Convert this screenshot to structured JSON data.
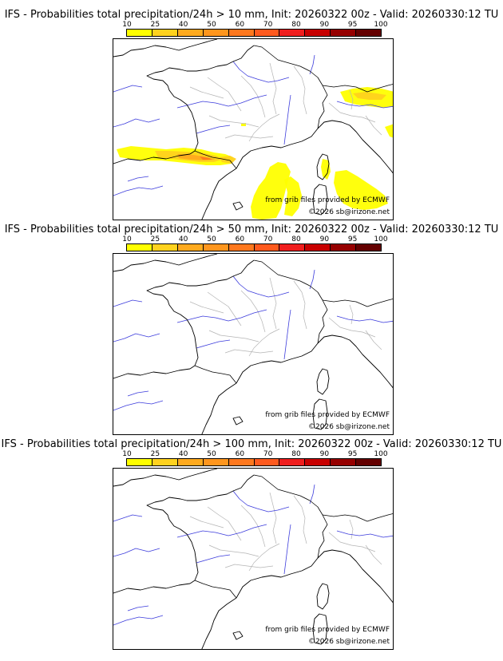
{
  "color_scale": {
    "labels": [
      "10",
      "25",
      "40",
      "50",
      "60",
      "70",
      "80",
      "90",
      "95",
      "100"
    ],
    "colors": [
      "#ffff00",
      "#ffd21e",
      "#ffaa1e",
      "#ff961e",
      "#ff781e",
      "#ff5a1e",
      "#f01e1e",
      "#c80000",
      "#960000",
      "#640000"
    ]
  },
  "panels": [
    {
      "title": "IFS - Probabilities total precipitation/24h > 10 mm, Init: 20260322 00z - Valid: 20260330:12 TU",
      "credit_source": "from grib files provided by ECMWF",
      "credit_copyright": "©2026 sb@irizone.net",
      "has_precip": true
    },
    {
      "title": "IFS - Probabilities total precipitation/24h > 50 mm, Init: 20260322 00z - Valid: 20260330:12 TU",
      "credit_source": "from grib files provided by ECMWF",
      "credit_copyright": "©2026 sb@irizone.net",
      "has_precip": false
    },
    {
      "title": "IFS - Probabilities total precipitation/24h > 100 mm, Init: 20260322 00z - Valid: 20260330:12 TU",
      "credit_source": "from grib files provided by ECMWF",
      "credit_copyright": "©2026 sb@irizone.net",
      "has_precip": false
    }
  ]
}
